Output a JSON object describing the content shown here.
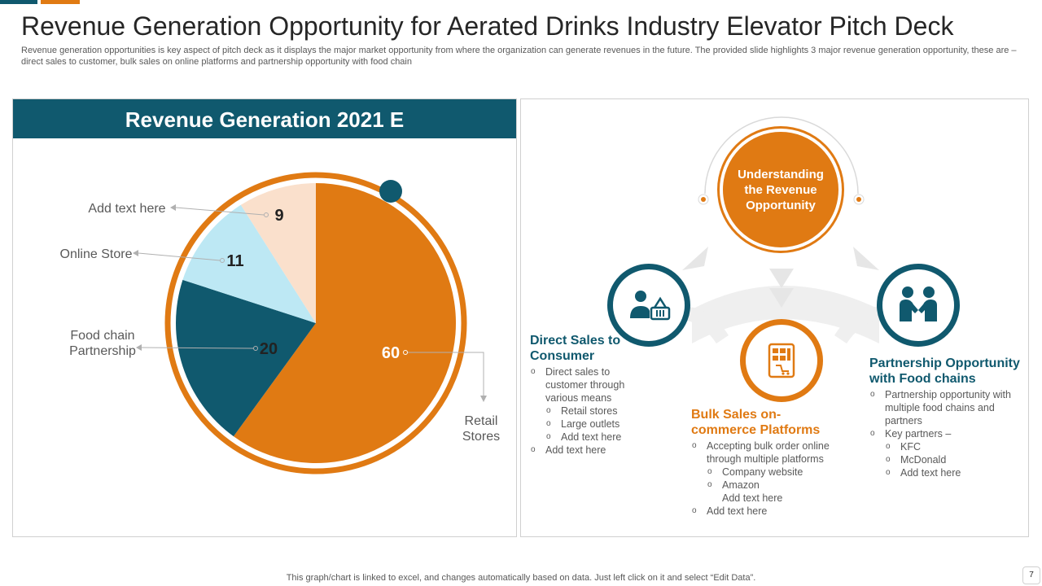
{
  "title": "Revenue Generation Opportunity for Aerated Drinks Industry Elevator Pitch Deck",
  "subtitle": "Revenue generation opportunities is key aspect of pitch deck as it displays the major market opportunity from where the organization can generate revenues in the future. The provided slide highlights 3 major revenue generation opportunity, these are – direct sales to customer, bulk sales on online platforms and partnership opportunity with food chain",
  "colors": {
    "teal": "#10596e",
    "orange": "#e07a13",
    "light_blue": "#bde8f4",
    "peach": "#fae0cc"
  },
  "chart_data": {
    "type": "pie",
    "title": "Revenue Generation 2021 E",
    "slices": [
      {
        "label": "Retail Stores",
        "value": 60,
        "color": "#e07a13"
      },
      {
        "label": "Food chain Partnership",
        "value": 20,
        "color": "#10596e"
      },
      {
        "label": "Online Store",
        "value": 11,
        "color": "#bde8f4"
      },
      {
        "label": "Add text here",
        "value": 9,
        "color": "#fae0cc"
      }
    ]
  },
  "center": {
    "label": "Understanding the Revenue Opportunity"
  },
  "columns": [
    {
      "title": "Direct Sales to Consumer",
      "icon": "person-basket-icon",
      "items": [
        {
          "text": "Direct sales to customer through various means",
          "level": 1
        },
        {
          "text": "Retail stores",
          "level": 2
        },
        {
          "text": "Large outlets",
          "level": 2
        },
        {
          "text": "Add text here",
          "level": 2
        },
        {
          "text": "Add text here",
          "level": 1
        }
      ]
    },
    {
      "title": "Bulk Sales on-commerce Platforms",
      "icon": "ecommerce-device-icon",
      "items": [
        {
          "text": "Accepting bulk order online through multiple platforms",
          "level": 1
        },
        {
          "text": "Company website",
          "level": 2
        },
        {
          "text": "Amazon",
          "level": 2
        },
        {
          "text": "Add text here",
          "level": 3
        },
        {
          "text": "Add text here",
          "level": 1
        }
      ]
    },
    {
      "title": "Partnership Opportunity with Food chains",
      "icon": "handshake-icon",
      "items": [
        {
          "text": "Partnership opportunity with multiple food chains and partners",
          "level": 1
        },
        {
          "text": "Key partners –",
          "level": 1
        },
        {
          "text": "KFC",
          "level": 2
        },
        {
          "text": "McDonald",
          "level": 2
        },
        {
          "text": "Add text here",
          "level": 2
        }
      ]
    }
  ],
  "footer_note": "This graph/chart is linked to excel, and changes automatically based on data. Just left click on it and select “Edit Data”.",
  "page_number": "7"
}
